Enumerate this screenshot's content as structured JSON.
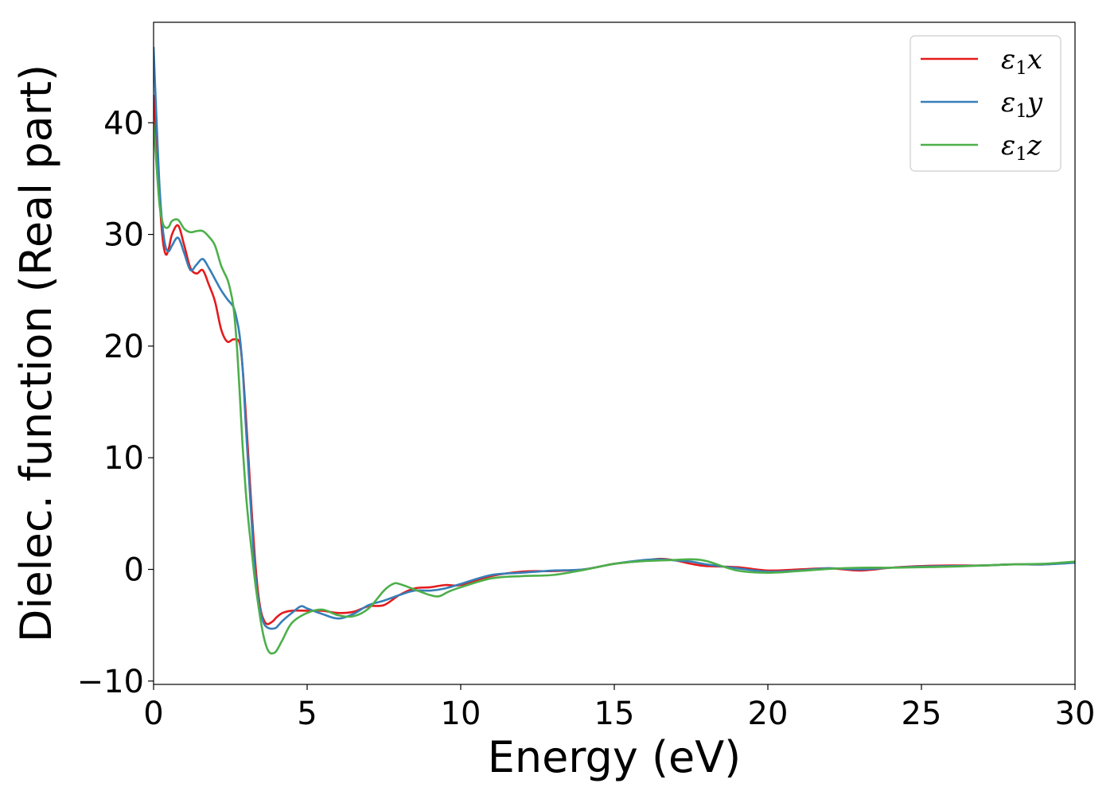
{
  "chart_data": {
    "type": "line",
    "title": "",
    "xlabel": "Energy (eV)",
    "ylabel": "Dielec. function (Real part)",
    "xlim": [
      0,
      30
    ],
    "ylim": [
      -10.3,
      49
    ],
    "xticks": [
      0,
      5,
      10,
      15,
      20,
      25,
      30
    ],
    "xtick_labels": [
      "0",
      "5",
      "10",
      "15",
      "20",
      "25",
      "30"
    ],
    "yticks": [
      -10,
      0,
      10,
      20,
      30,
      40
    ],
    "ytick_labels": [
      "−10",
      "0",
      "10",
      "20",
      "30",
      "40"
    ],
    "grid": false,
    "legend_position": "top-right",
    "series": [
      {
        "name": "ε₁x",
        "legend_main": "ε",
        "legend_sub": "1",
        "legend_suffix": "x",
        "color": "#e41a1c",
        "x": [
          0,
          0.1,
          0.2,
          0.3,
          0.4,
          0.5,
          0.6,
          0.8,
          1.0,
          1.2,
          1.4,
          1.6,
          1.8,
          2.0,
          2.2,
          2.4,
          2.6,
          2.8,
          2.9,
          3.0,
          3.1,
          3.2,
          3.3,
          3.4,
          3.5,
          3.6,
          3.7,
          3.8,
          3.9,
          4.0,
          4.2,
          4.5,
          5.0,
          5.5,
          6.0,
          6.5,
          7.0,
          7.5,
          8.0,
          8.5,
          9.0,
          9.5,
          10.0,
          11.0,
          12.0,
          13.0,
          14.0,
          15.0,
          16.0,
          16.5,
          17.0,
          17.5,
          18.0,
          19.0,
          20.0,
          21.0,
          22.0,
          23.0,
          24.0,
          25.0,
          26.0,
          27.0,
          28.0,
          29.0,
          30.0
        ],
        "y": [
          42.5,
          38,
          33,
          29.5,
          28.2,
          28.8,
          30,
          30.8,
          29,
          27,
          26.5,
          26.8,
          25.5,
          24,
          21.5,
          20.4,
          20.6,
          20.3,
          18,
          14,
          9.5,
          5,
          1,
          -2,
          -3.8,
          -4.6,
          -4.9,
          -4.8,
          -4.6,
          -4.3,
          -3.9,
          -3.7,
          -3.7,
          -3.7,
          -3.9,
          -3.8,
          -3.3,
          -3.2,
          -2.3,
          -1.7,
          -1.6,
          -1.4,
          -1.4,
          -0.6,
          -0.2,
          -0.15,
          0,
          0.5,
          0.8,
          0.95,
          0.8,
          0.5,
          0.3,
          0.2,
          -0.1,
          0.0,
          0.1,
          -0.1,
          0.15,
          0.3,
          0.35,
          0.35,
          0.45,
          0.45,
          0.65
        ],
        "values_note": ""
      },
      {
        "name": "ε₁y",
        "legend_main": "ε",
        "legend_sub": "1",
        "legend_suffix": "y",
        "color": "#377eb8",
        "x": [
          0,
          0.1,
          0.2,
          0.3,
          0.4,
          0.5,
          0.6,
          0.8,
          1.0,
          1.2,
          1.4,
          1.6,
          1.8,
          2.0,
          2.2,
          2.4,
          2.6,
          2.7,
          2.8,
          2.9,
          3.0,
          3.1,
          3.2,
          3.3,
          3.4,
          3.5,
          3.6,
          3.7,
          3.8,
          3.9,
          4.0,
          4.2,
          4.5,
          4.8,
          5.0,
          5.5,
          6.0,
          6.5,
          7.0,
          7.5,
          8.0,
          8.5,
          9.0,
          9.5,
          10.0,
          11.0,
          12.0,
          13.0,
          14.0,
          15.0,
          16.0,
          16.5,
          17.0,
          17.5,
          18.0,
          19.0,
          20.0,
          21.0,
          22.0,
          23.0,
          24.0,
          25.0,
          26.0,
          27.0,
          28.0,
          29.0,
          30.0
        ],
        "y": [
          46.8,
          40,
          34,
          30.5,
          28.8,
          28.5,
          29,
          29.7,
          28.3,
          26.8,
          27.3,
          27.8,
          27,
          26,
          25,
          24.2,
          23.5,
          22.5,
          21,
          18,
          13,
          8.5,
          4,
          0,
          -2.5,
          -4,
          -4.9,
          -5.2,
          -5.3,
          -5.3,
          -5.2,
          -4.6,
          -3.9,
          -3.3,
          -3.5,
          -4.0,
          -4.4,
          -4.0,
          -3.2,
          -2.8,
          -2.3,
          -1.9,
          -1.9,
          -1.7,
          -1.3,
          -0.5,
          -0.3,
          -0.1,
          0.0,
          0.5,
          0.85,
          0.9,
          0.8,
          0.7,
          0.45,
          0.1,
          -0.2,
          -0.1,
          0.1,
          0.0,
          0.15,
          0.25,
          0.3,
          0.35,
          0.45,
          0.45,
          0.6
        ],
        "values_note": ""
      },
      {
        "name": "ε₁z",
        "legend_main": "ε",
        "legend_sub": "1",
        "legend_suffix": "z",
        "color": "#4daf4a",
        "x": [
          0,
          0.1,
          0.2,
          0.3,
          0.4,
          0.5,
          0.6,
          0.8,
          1.0,
          1.2,
          1.4,
          1.6,
          1.8,
          2.0,
          2.2,
          2.4,
          2.5,
          2.6,
          2.7,
          2.8,
          2.9,
          3.0,
          3.1,
          3.2,
          3.3,
          3.4,
          3.5,
          3.6,
          3.7,
          3.8,
          3.9,
          4.0,
          4.2,
          4.5,
          5.0,
          5.5,
          6.0,
          6.5,
          7.0,
          7.5,
          7.8,
          8.0,
          8.5,
          9.0,
          9.3,
          9.6,
          10.0,
          11.0,
          12.0,
          13.0,
          14.0,
          15.0,
          16.0,
          16.5,
          17.0,
          17.5,
          18.0,
          19.0,
          20.0,
          21.0,
          22.0,
          23.0,
          24.0,
          25.0,
          26.0,
          27.0,
          28.0,
          29.0,
          30.0
        ],
        "y": [
          40,
          36,
          32.5,
          31,
          30.6,
          30.7,
          31.2,
          31.3,
          30.5,
          30.2,
          30.3,
          30.3,
          29.8,
          29,
          27.2,
          26,
          25,
          23.5,
          20.5,
          16,
          11,
          7,
          4,
          1.5,
          -1,
          -3,
          -4.8,
          -6.2,
          -7.1,
          -7.5,
          -7.5,
          -7.3,
          -6.3,
          -4.8,
          -3.9,
          -3.6,
          -4.1,
          -4.2,
          -3.5,
          -1.9,
          -1.3,
          -1.3,
          -1.8,
          -2.3,
          -2.4,
          -2.0,
          -1.6,
          -0.8,
          -0.6,
          -0.5,
          -0.05,
          0.5,
          0.75,
          0.8,
          0.85,
          0.9,
          0.75,
          -0.1,
          -0.3,
          -0.15,
          0.05,
          0.15,
          0.15,
          0.2,
          0.25,
          0.35,
          0.45,
          0.5,
          0.7
        ],
        "values_note": ""
      }
    ]
  }
}
